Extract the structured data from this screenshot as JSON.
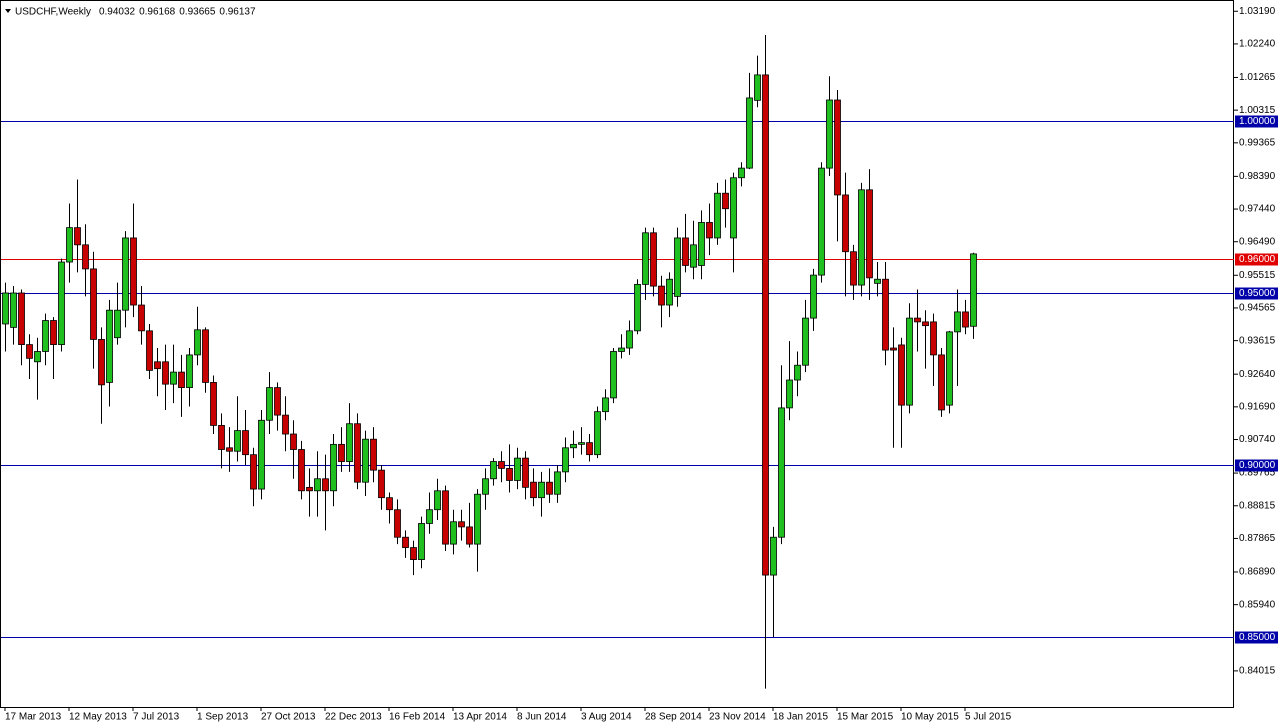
{
  "chart_data": {
    "type": "candlestick",
    "title": "USDCHF,Weekly",
    "header_values": [
      0.94032,
      0.96168,
      0.93665,
      0.96137
    ],
    "categories": [
      "17 Mar 2013",
      null,
      null,
      null,
      null,
      null,
      null,
      null,
      "12 May 2013",
      null,
      null,
      null,
      null,
      null,
      null,
      null,
      "7 Jul 2013",
      null,
      null,
      null,
      null,
      null,
      null,
      null,
      "1 Sep 2013",
      null,
      null,
      null,
      null,
      null,
      null,
      null,
      "27 Oct 2013",
      null,
      null,
      null,
      null,
      null,
      null,
      null,
      "22 Dec 2013",
      null,
      null,
      null,
      null,
      null,
      null,
      null,
      "16 Feb 2014",
      null,
      null,
      null,
      null,
      null,
      null,
      null,
      "13 Apr 2014",
      null,
      null,
      null,
      null,
      null,
      null,
      null,
      "8 Jun 2014",
      null,
      null,
      null,
      null,
      null,
      null,
      null,
      "3 Aug 2014",
      null,
      null,
      null,
      null,
      null,
      null,
      null,
      "28 Sep 2014",
      null,
      null,
      null,
      null,
      null,
      null,
      null,
      "23 Nov 2014",
      null,
      null,
      null,
      null,
      null,
      null,
      null,
      "18 Jan 2015",
      null,
      null,
      null,
      null,
      null,
      null,
      null,
      "15 Mar 2015",
      null,
      null,
      null,
      null,
      null,
      null,
      null,
      "10 May 2015",
      null,
      null,
      null,
      null,
      null,
      null,
      null,
      "5 Jul 2015",
      null
    ],
    "open": [
      0.941,
      0.94,
      0.95,
      0.935,
      0.93,
      0.933,
      0.942,
      0.935,
      0.959,
      0.969,
      0.964,
      0.957,
      0.9365,
      0.924,
      0.937,
      0.945,
      0.966,
      0.9465,
      0.939,
      0.93,
      0.93,
      0.9235,
      0.927,
      0.9225,
      0.932,
      0.9393,
      0.924,
      0.9115,
      0.905,
      0.904,
      0.91,
      0.903,
      0.893,
      0.913,
      0.9225,
      0.9145,
      0.909,
      0.9045,
      0.8935,
      0.8925,
      0.896,
      0.8925,
      0.906,
      0.901,
      0.912,
      0.895,
      0.9075,
      0.8985,
      0.8905,
      0.887,
      0.879,
      0.876,
      0.8725,
      0.883,
      0.887,
      0.8925,
      0.877,
      0.8835,
      0.882,
      0.877,
      0.8915,
      0.896,
      0.901,
      0.899,
      0.8955,
      0.902,
      0.895,
      0.8905,
      0.895,
      0.8915,
      0.898,
      0.905,
      0.906,
      0.9065,
      0.903,
      0.9155,
      0.9195,
      0.933,
      0.934,
      0.939,
      0.9525,
      0.9675,
      0.952,
      0.9465,
      0.949,
      0.966,
      0.9575,
      0.958,
      0.9705,
      0.966,
      0.979,
      0.966,
      0.9835,
      0.9863,
      1.006,
      1.0134,
      0.868,
      0.879,
      0.9166,
      0.9247,
      0.929,
      0.9427,
      0.9552,
      0.9863,
      1.0061,
      0.9785,
      0.962,
      0.9523,
      0.98,
      0.9528,
      0.954,
      0.934,
      0.9349,
      0.9174,
      0.9427,
      0.9416,
      0.9416,
      0.932,
      0.9174,
      0.9387,
      0.9445,
      0.94032
    ],
    "high": [
      0.953,
      0.952,
      0.951,
      0.938,
      0.937,
      0.944,
      0.943,
      0.96,
      0.976,
      0.983,
      0.97,
      0.962,
      0.94,
      0.948,
      0.953,
      0.968,
      0.976,
      0.952,
      0.941,
      0.934,
      0.935,
      0.935,
      0.932,
      0.934,
      0.946,
      0.94,
      0.926,
      0.915,
      0.911,
      0.92,
      0.916,
      0.905,
      0.916,
      0.927,
      0.924,
      0.92,
      0.913,
      0.907,
      0.899,
      0.904,
      0.903,
      0.909,
      0.911,
      0.918,
      0.915,
      0.91,
      0.911,
      0.9,
      0.892,
      0.89,
      0.881,
      0.878,
      0.885,
      0.892,
      0.896,
      0.894,
      0.887,
      0.887,
      0.889,
      0.893,
      0.899,
      0.902,
      0.904,
      0.906,
      0.905,
      0.904,
      0.899,
      0.898,
      0.899,
      0.9,
      0.908,
      0.91,
      0.911,
      0.909,
      0.917,
      0.922,
      0.934,
      0.938,
      0.942,
      0.954,
      0.969,
      0.969,
      0.955,
      0.956,
      0.969,
      0.973,
      0.971,
      0.974,
      0.976,
      0.982,
      0.983,
      0.985,
      0.988,
      1.014,
      1.019,
      1.025,
      0.882,
      0.929,
      0.936,
      0.933,
      0.948,
      0.957,
      0.988,
      1.013,
      1.009,
      0.985,
      0.964,
      0.982,
      0.986,
      0.959,
      0.959,
      0.94,
      0.937,
      0.947,
      0.951,
      0.945,
      0.944,
      0.934,
      0.939,
      0.951,
      0.948,
      0.96168
    ],
    "low": [
      0.933,
      0.935,
      0.929,
      0.925,
      0.919,
      0.929,
      0.925,
      0.933,
      0.953,
      0.956,
      0.949,
      0.928,
      0.912,
      0.917,
      0.935,
      0.94,
      0.943,
      0.935,
      0.925,
      0.92,
      0.916,
      0.918,
      0.914,
      0.917,
      0.929,
      0.921,
      0.909,
      0.899,
      0.898,
      0.901,
      0.9,
      0.888,
      0.89,
      0.909,
      0.91,
      0.904,
      0.896,
      0.89,
      0.885,
      0.885,
      0.881,
      0.888,
      0.898,
      0.898,
      0.893,
      0.891,
      0.895,
      0.887,
      0.883,
      0.877,
      0.873,
      0.868,
      0.87,
      0.88,
      0.884,
      0.875,
      0.874,
      0.878,
      0.876,
      0.869,
      0.887,
      0.894,
      0.895,
      0.892,
      0.893,
      0.89,
      0.888,
      0.885,
      0.889,
      0.889,
      0.895,
      0.902,
      0.903,
      0.901,
      0.902,
      0.913,
      0.918,
      0.931,
      0.932,
      0.938,
      0.948,
      0.949,
      0.94,
      0.943,
      0.946,
      0.956,
      0.954,
      0.954,
      0.961,
      0.964,
      0.969,
      0.956,
      0.981,
      0.986,
      1.004,
      0.835,
      0.85,
      0.877,
      0.913,
      0.92,
      0.927,
      0.939,
      0.953,
      0.984,
      0.965,
      0.949,
      0.948,
      0.949,
      0.948,
      0.949,
      0.929,
      0.905,
      0.905,
      0.915,
      0.933,
      0.928,
      0.923,
      0.914,
      0.915,
      0.923,
      0.938,
      0.93665
    ],
    "close": [
      0.95,
      0.95,
      0.935,
      0.931,
      0.933,
      0.942,
      0.935,
      0.959,
      0.969,
      0.964,
      0.957,
      0.9365,
      0.9233,
      0.945,
      0.945,
      0.966,
      0.9465,
      0.939,
      0.9275,
      0.928,
      0.9235,
      0.927,
      0.9225,
      0.932,
      0.9393,
      0.924,
      0.9115,
      0.9045,
      0.904,
      0.91,
      0.903,
      0.893,
      0.913,
      0.9225,
      0.9145,
      0.909,
      0.9045,
      0.8925,
      0.8925,
      0.896,
      0.8925,
      0.906,
      0.901,
      0.912,
      0.895,
      0.9075,
      0.8985,
      0.8905,
      0.887,
      0.879,
      0.876,
      0.8725,
      0.883,
      0.887,
      0.8925,
      0.877,
      0.8835,
      0.882,
      0.877,
      0.8915,
      0.896,
      0.901,
      0.899,
      0.8955,
      0.902,
      0.8935,
      0.8905,
      0.895,
      0.8915,
      0.898,
      0.905,
      0.906,
      0.9065,
      0.903,
      0.9155,
      0.9195,
      0.933,
      0.934,
      0.939,
      0.9525,
      0.9675,
      0.952,
      0.9465,
      0.954,
      0.966,
      0.958,
      0.964,
      0.9705,
      0.966,
      0.979,
      0.9745,
      0.9835,
      0.9863,
      1.0067,
      1.0134,
      0.868,
      0.879,
      0.9166,
      0.9247,
      0.929,
      0.9427,
      0.9552,
      0.9863,
      1.0061,
      0.9785,
      0.962,
      0.9523,
      0.98,
      0.9544,
      0.954,
      0.9334,
      0.9334,
      0.9174,
      0.9427,
      0.9416,
      0.9405,
      0.932,
      0.916,
      0.9387,
      0.9445,
      0.9401,
      0.96137
    ],
    "up_color": "#1fbf1f",
    "down_color": "#c80000",
    "ylim": [
      0.82965,
      1.03517
    ],
    "yticks": [
      {
        "value": 1.0319,
        "label": "1.03190"
      },
      {
        "value": 1.0224,
        "label": "1.02240"
      },
      1.01265,
      1.00315,
      0.99365,
      {
        "value": 0.9839,
        "label": "0.98390"
      },
      {
        "value": 0.9744,
        "label": "0.97440"
      },
      {
        "value": 0.9649,
        "label": "0.96490"
      },
      0.95515,
      0.94565,
      0.93615,
      {
        "value": 0.9264,
        "label": "0.92640"
      },
      {
        "value": 0.9169,
        "label": "0.91690"
      },
      {
        "value": 0.9074,
        "label": "0.90740"
      },
      0.89765,
      0.88815,
      0.87865,
      {
        "value": 0.8689,
        "label": "0.86890"
      },
      {
        "value": 0.8594,
        "label": "0.85940"
      },
      0.84015
    ],
    "hlines": [
      {
        "value": 1,
        "label": "1.00000",
        "color": "#0000a8"
      },
      {
        "value": 0.96,
        "label": "0.96000",
        "color": "#e00000"
      },
      {
        "value": 0.95,
        "label": "0.95000",
        "color": "#0000a8"
      },
      {
        "value": 0.9,
        "label": "0.90000",
        "color": "#0000a8"
      },
      {
        "value": 0.85,
        "label": "0.85000",
        "color": "#0000a8"
      }
    ]
  }
}
